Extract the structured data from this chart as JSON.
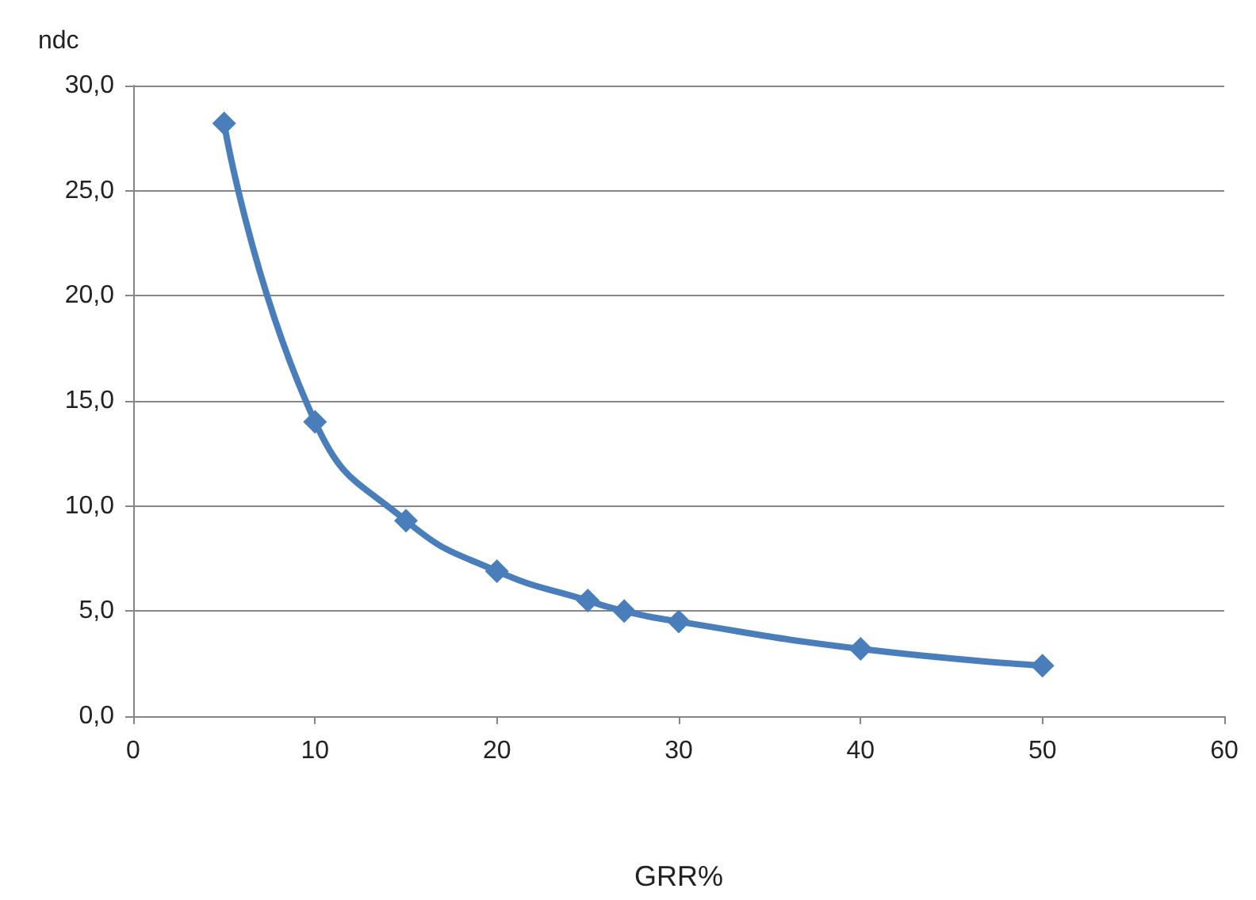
{
  "chart_data": {
    "type": "line",
    "xlabel": "GRR%",
    "ylabel": "ndc",
    "series": [
      {
        "color": "#4a7ebb",
        "x": [
          5,
          10,
          15,
          20,
          25,
          27,
          30,
          40,
          50
        ],
        "values": [
          28.2,
          14.0,
          9.3,
          6.9,
          5.5,
          5.0,
          4.5,
          3.2,
          2.4
        ]
      }
    ],
    "xlim": [
      0,
      60
    ],
    "xticks": [
      0,
      10,
      20,
      30,
      40,
      50,
      60
    ],
    "ylim": [
      0,
      30
    ],
    "yticks": [
      {
        "value": 0,
        "label": "0,0"
      },
      {
        "value": 5,
        "label": "5,0"
      },
      {
        "value": 10,
        "label": "10,0"
      },
      {
        "value": 15,
        "label": "15,0"
      },
      {
        "value": 20,
        "label": "20,0"
      },
      {
        "value": 25,
        "label": "25,0"
      },
      {
        "value": 30,
        "label": "30,0"
      }
    ],
    "grid": "y",
    "marker": "diamond",
    "line_style": "solid"
  }
}
